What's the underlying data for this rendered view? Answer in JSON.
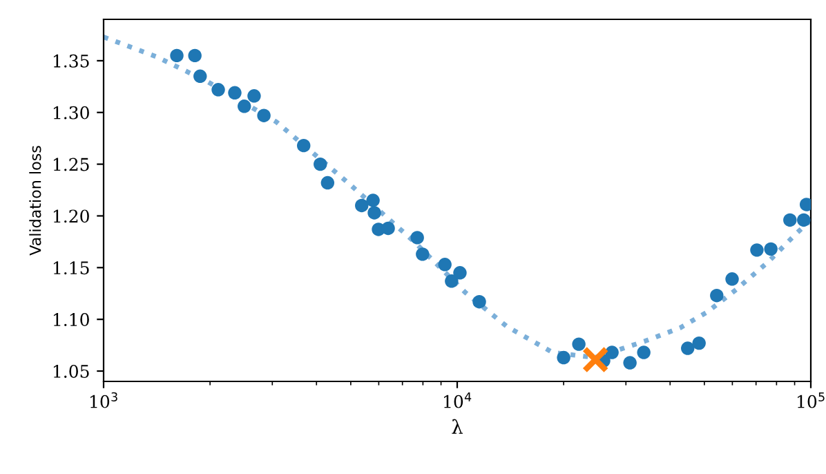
{
  "chart_data": {
    "type": "scatter",
    "xlabel": "λ",
    "ylabel": "Validation loss",
    "log": "x",
    "xlim": [
      1000,
      100000
    ],
    "xticks": [
      {
        "value": 1000,
        "label": "10$^{3}$"
      },
      {
        "value": 10000,
        "label": "10$^{4}$"
      },
      {
        "value": 100000,
        "label": "10$^{5}$"
      }
    ],
    "ylim": [
      1.04,
      1.39
    ],
    "yticks": [
      {
        "value": 1.05,
        "label": "1.05"
      },
      {
        "value": 1.1,
        "label": "1.10"
      },
      {
        "value": 1.15,
        "label": "1.15"
      },
      {
        "value": 1.2,
        "label": "1.20"
      },
      {
        "value": 1.25,
        "label": "1.25"
      },
      {
        "value": 1.3,
        "label": "1.30"
      },
      {
        "value": 1.35,
        "label": "1.35"
      }
    ],
    "grid": false,
    "series": [
      {
        "type": "line",
        "line_style": "dotted",
        "color": "#5a9bd0",
        "x": [
          1000,
          1407,
          1963,
          3076,
          4914,
          7558,
          10540,
          13830,
          18620,
          24470,
          34000,
          42800,
          50900,
          61600,
          76000,
          91000,
          100000
        ],
        "values": [
          1.373,
          1.354,
          1.33,
          1.291,
          1.232,
          1.175,
          1.126,
          1.093,
          1.068,
          1.063,
          1.079,
          1.092,
          1.107,
          1.129,
          1.156,
          1.183,
          1.196
        ]
      },
      {
        "marker": "circle",
        "color": "#1f77b4",
        "x": [
          1611,
          1812,
          1875,
          2110,
          2350,
          2500,
          2665,
          2840,
          3680,
          4100,
          4300,
          5370,
          5780,
          5830,
          5990,
          6380,
          7710,
          7980,
          9230,
          9640,
          10180,
          11550,
          20000,
          22080,
          25950,
          27400,
          30800,
          33700,
          44860,
          48300,
          54200,
          59900,
          70400,
          77100,
          87300,
          95500,
          97200
        ],
        "values": [
          1.355,
          1.355,
          1.335,
          1.322,
          1.319,
          1.306,
          1.316,
          1.297,
          1.268,
          1.25,
          1.232,
          1.21,
          1.215,
          1.203,
          1.187,
          1.188,
          1.179,
          1.163,
          1.153,
          1.137,
          1.145,
          1.117,
          1.063,
          1.076,
          1.06,
          1.068,
          1.058,
          1.068,
          1.072,
          1.077,
          1.123,
          1.139,
          1.167,
          1.168,
          1.196,
          1.196,
          1.211
        ]
      },
      {
        "type": "scatter",
        "marker": "cross",
        "color": "#ff7f0e",
        "x": [
          24600
        ],
        "values": [
          1.061
        ]
      }
    ]
  }
}
